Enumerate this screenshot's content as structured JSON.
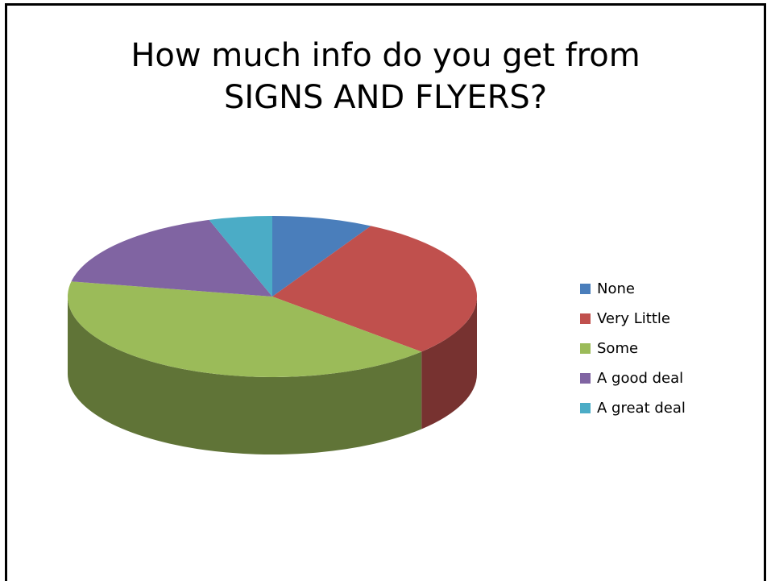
{
  "chart_data": {
    "type": "pie",
    "title_lines": [
      "How much info do you get from",
      "SIGNS AND FLYERS?"
    ],
    "categories": [
      "None",
      "Very Little",
      "Some",
      "A good deal",
      "A great deal"
    ],
    "values": [
      8,
      29,
      41,
      17,
      5
    ],
    "colors": [
      "#4a7ebb",
      "#c0504d",
      "#9bbb59",
      "#8064a2",
      "#4bacc6"
    ],
    "legend_position": "right",
    "style": "3d"
  }
}
